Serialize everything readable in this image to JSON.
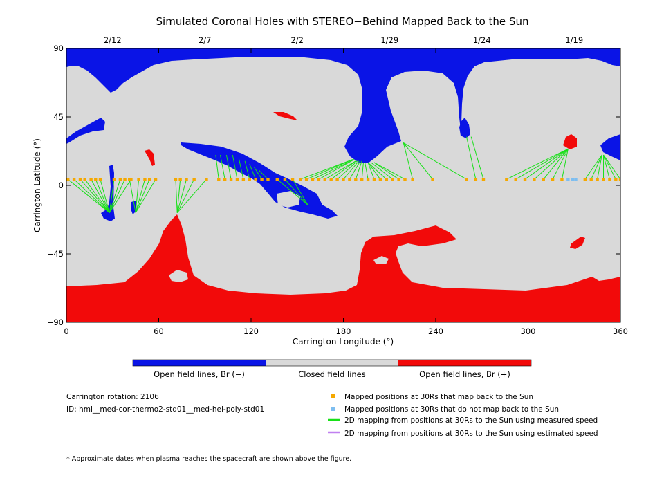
{
  "colors": {
    "open_negative": "#0a14e6",
    "closed": "#d9d9d9",
    "open_positive": "#f20a0a",
    "mapped_back": "#f5a800",
    "not_mapped": "#7ebef0",
    "measured_speed": "#18e018",
    "estimated_speed": "#c080f0"
  },
  "chart_data": {
    "type": "map",
    "title": "Simulated Coronal Holes with STEREO−Behind Mapped Back to the Sun",
    "xlabel": "Carrington Longitude (°)",
    "ylabel": "Carrington Latitude (°)",
    "xlim": [
      0,
      360
    ],
    "ylim": [
      -90,
      90
    ],
    "x_ticks": [
      0,
      60,
      120,
      180,
      240,
      300,
      360
    ],
    "y_ticks": [
      90,
      45,
      0,
      -45,
      -90
    ],
    "y_tick_labels": [
      "90",
      "45",
      "0",
      "−45",
      "−90"
    ],
    "top_dates": [
      {
        "label": "2/12",
        "lon": 30
      },
      {
        "label": "2/7",
        "lon": 90
      },
      {
        "label": "2/2",
        "lon": 150
      },
      {
        "label": "1/29",
        "lon": 210
      },
      {
        "label": "1/24",
        "lon": 270
      },
      {
        "label": "1/19",
        "lon": 330
      }
    ],
    "mapping_lines": [
      {
        "from": [
          1,
          4
        ],
        "to": [
          28,
          -18
        ]
      },
      {
        "from": [
          5,
          4
        ],
        "to": [
          28,
          -18
        ]
      },
      {
        "from": [
          9,
          4
        ],
        "to": [
          28,
          -18
        ]
      },
      {
        "from": [
          12,
          4
        ],
        "to": [
          28,
          -18
        ]
      },
      {
        "from": [
          16,
          4
        ],
        "to": [
          28,
          -18
        ]
      },
      {
        "from": [
          19,
          4
        ],
        "to": [
          28,
          -18
        ]
      },
      {
        "from": [
          22,
          4
        ],
        "to": [
          28,
          -18
        ]
      },
      {
        "from": [
          31,
          4
        ],
        "to": [
          28,
          -18
        ]
      },
      {
        "from": [
          35,
          4
        ],
        "to": [
          28,
          -18
        ]
      },
      {
        "from": [
          38,
          4
        ],
        "to": [
          28,
          -18
        ]
      },
      {
        "from": [
          42,
          4
        ],
        "to": [
          28,
          -18
        ]
      },
      {
        "from": [
          41,
          4
        ],
        "to": [
          45,
          -18
        ]
      },
      {
        "from": [
          47,
          4
        ],
        "to": [
          45,
          -18
        ]
      },
      {
        "from": [
          51,
          4
        ],
        "to": [
          45,
          -18
        ]
      },
      {
        "from": [
          54,
          4
        ],
        "to": [
          45,
          -18
        ]
      },
      {
        "from": [
          58,
          4
        ],
        "to": [
          45,
          -18
        ]
      },
      {
        "from": [
          71,
          4
        ],
        "to": [
          72,
          -18
        ]
      },
      {
        "from": [
          74,
          4
        ],
        "to": [
          72,
          -18
        ]
      },
      {
        "from": [
          78,
          4
        ],
        "to": [
          72,
          -18
        ]
      },
      {
        "from": [
          83,
          4
        ],
        "to": [
          72,
          -18
        ]
      },
      {
        "from": [
          91,
          4
        ],
        "to": [
          72,
          -18
        ]
      },
      {
        "from": [
          99,
          4
        ],
        "to": [
          97,
          20
        ]
      },
      {
        "from": [
          103,
          4
        ],
        "to": [
          100,
          20
        ]
      },
      {
        "from": [
          107,
          4
        ],
        "to": [
          104,
          20
        ]
      },
      {
        "from": [
          111,
          4
        ],
        "to": [
          108,
          20
        ]
      },
      {
        "from": [
          115,
          4
        ],
        "to": [
          112,
          18
        ]
      },
      {
        "from": [
          119,
          4
        ],
        "to": [
          116,
          16
        ]
      },
      {
        "from": [
          123,
          4
        ],
        "to": [
          119,
          14
        ]
      },
      {
        "from": [
          127,
          4
        ],
        "to": [
          122,
          12
        ]
      },
      {
        "from": [
          131,
          4
        ],
        "to": [
          125,
          10
        ]
      },
      {
        "from": [
          137,
          4
        ],
        "to": [
          157,
          -13
        ]
      },
      {
        "from": [
          142,
          4
        ],
        "to": [
          157,
          -13
        ]
      },
      {
        "from": [
          147,
          4
        ],
        "to": [
          157,
          -13
        ]
      },
      {
        "from": [
          152,
          4
        ],
        "to": [
          186,
          17
        ]
      },
      {
        "from": [
          156,
          4
        ],
        "to": [
          186,
          17
        ]
      },
      {
        "from": [
          160,
          4
        ],
        "to": [
          187,
          17
        ]
      },
      {
        "from": [
          164,
          4
        ],
        "to": [
          187,
          17
        ]
      },
      {
        "from": [
          168,
          4
        ],
        "to": [
          188,
          16
        ]
      },
      {
        "from": [
          172,
          4
        ],
        "to": [
          188,
          16
        ]
      },
      {
        "from": [
          176,
          4
        ],
        "to": [
          189,
          16
        ]
      },
      {
        "from": [
          180,
          4
        ],
        "to": [
          190,
          16
        ]
      },
      {
        "from": [
          184,
          4
        ],
        "to": [
          191,
          16
        ]
      },
      {
        "from": [
          188,
          4
        ],
        "to": [
          192,
          16
        ]
      },
      {
        "from": [
          192,
          4
        ],
        "to": [
          193,
          15
        ]
      },
      {
        "from": [
          196,
          4
        ],
        "to": [
          194,
          15
        ]
      },
      {
        "from": [
          200,
          4
        ],
        "to": [
          196,
          15
        ]
      },
      {
        "from": [
          204,
          4
        ],
        "to": [
          196,
          15
        ]
      },
      {
        "from": [
          208,
          4
        ],
        "to": [
          196,
          15
        ]
      },
      {
        "from": [
          212,
          4
        ],
        "to": [
          198,
          15
        ]
      },
      {
        "from": [
          216,
          4
        ],
        "to": [
          200,
          15
        ]
      },
      {
        "from": [
          220,
          4
        ],
        "to": [
          200,
          15
        ]
      },
      {
        "from": [
          225,
          4
        ],
        "to": [
          219,
          28
        ]
      },
      {
        "from": [
          238,
          4
        ],
        "to": [
          219,
          28
        ]
      },
      {
        "from": [
          260,
          4
        ],
        "to": [
          219,
          28
        ]
      },
      {
        "from": [
          266,
          4
        ],
        "to": [
          260,
          32
        ]
      },
      {
        "from": [
          271,
          4
        ],
        "to": [
          263,
          32
        ]
      },
      {
        "from": [
          286,
          4
        ],
        "to": [
          326,
          24
        ]
      },
      {
        "from": [
          292,
          4
        ],
        "to": [
          326,
          24
        ]
      },
      {
        "from": [
          298,
          4
        ],
        "to": [
          326,
          24
        ]
      },
      {
        "from": [
          304,
          4
        ],
        "to": [
          326,
          24
        ]
      },
      {
        "from": [
          310,
          4
        ],
        "to": [
          326,
          24
        ]
      },
      {
        "from": [
          316,
          4
        ],
        "to": [
          326,
          24
        ]
      },
      {
        "from": [
          322,
          4
        ],
        "to": [
          326,
          24
        ]
      },
      {
        "from": [
          337,
          4
        ],
        "to": [
          348,
          20
        ]
      },
      {
        "from": [
          341,
          4
        ],
        "to": [
          348,
          20
        ]
      },
      {
        "from": [
          345,
          4
        ],
        "to": [
          348,
          20
        ]
      },
      {
        "from": [
          349,
          4
        ],
        "to": [
          349,
          20
        ]
      },
      {
        "from": [
          353,
          4
        ],
        "to": [
          349,
          20
        ]
      },
      {
        "from": [
          357,
          4
        ],
        "to": [
          349,
          20
        ]
      },
      {
        "from": [
          360,
          4
        ],
        "to": [
          349,
          20
        ]
      }
    ],
    "not_mapped_positions": [
      [
        326,
        4
      ],
      [
        329,
        4
      ],
      [
        331,
        4
      ]
    ]
  },
  "colorbar": {
    "labels": [
      "Open field lines, Br (−)",
      "Closed field lines",
      "Open field lines, Br (+)"
    ]
  },
  "info": {
    "rotation": "Carrington rotation: 2106",
    "model_id": "ID: hmi__med-cor-thermo2-std01__med-hel-poly-std01"
  },
  "legend": [
    {
      "label": "Mapped positions at 30Rs that map back to the Sun",
      "kind": "square",
      "color_key": "mapped_back"
    },
    {
      "label": "Mapped positions at 30Rs that do not map back to the Sun",
      "kind": "square",
      "color_key": "not_mapped"
    },
    {
      "label": "2D mapping from positions at 30Rs to the Sun using measured speed",
      "kind": "line",
      "color_key": "measured_speed"
    },
    {
      "label": "2D mapping from positions at 30Rs to the Sun using estimated speed",
      "kind": "line",
      "color_key": "estimated_speed"
    }
  ],
  "footnote": "* Approximate dates when plasma reaches the spacecraft are shown above the figure."
}
